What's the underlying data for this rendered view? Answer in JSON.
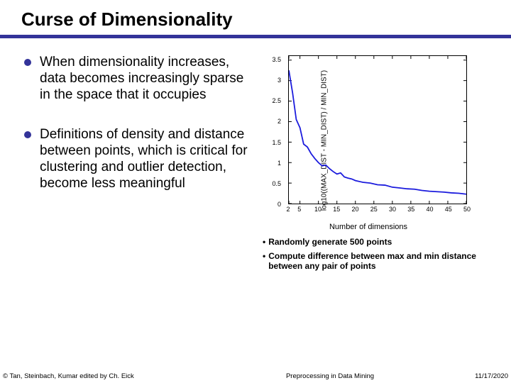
{
  "title": "Curse of Dimensionality",
  "bullets": [
    "When dimensionality increases, data becomes increasingly sparse in the space that it occupies",
    "Definitions of density and distance between points, which is critical for clustering and outlier detection, become less meaningful"
  ],
  "chart": {
    "type": "line",
    "y_label": "log10((MAX_DIST - MIN_DIST) / MIN_DIST)",
    "x_label": "Number of dimensions",
    "xlim": [
      2,
      50
    ],
    "ylim": [
      0,
      3.6
    ],
    "x_ticks": [
      2,
      5,
      10,
      15,
      20,
      25,
      30,
      35,
      40,
      45,
      50
    ],
    "y_ticks": [
      0,
      0.5,
      1,
      1.5,
      2,
      2.5,
      3,
      3.5
    ],
    "y_tick_labels": [
      "0",
      "0.5",
      "1",
      "1.5",
      "2",
      "2.5",
      "3",
      "3.5"
    ],
    "line_color": "#1b1bdd",
    "line_width": 1.8,
    "border_color": "#000000",
    "background_color": "#ffffff",
    "data": [
      {
        "x": 2,
        "y": 3.25
      },
      {
        "x": 3,
        "y": 2.7
      },
      {
        "x": 4,
        "y": 2.05
      },
      {
        "x": 5,
        "y": 1.85
      },
      {
        "x": 6,
        "y": 1.45
      },
      {
        "x": 7,
        "y": 1.38
      },
      {
        "x": 8,
        "y": 1.22
      },
      {
        "x": 9,
        "y": 1.1
      },
      {
        "x": 10,
        "y": 1.0
      },
      {
        "x": 11,
        "y": 0.92
      },
      {
        "x": 12,
        "y": 0.94
      },
      {
        "x": 13,
        "y": 0.85
      },
      {
        "x": 14,
        "y": 0.78
      },
      {
        "x": 15,
        "y": 0.72
      },
      {
        "x": 16,
        "y": 0.75
      },
      {
        "x": 17,
        "y": 0.65
      },
      {
        "x": 18,
        "y": 0.62
      },
      {
        "x": 19,
        "y": 0.6
      },
      {
        "x": 20,
        "y": 0.56
      },
      {
        "x": 22,
        "y": 0.52
      },
      {
        "x": 24,
        "y": 0.5
      },
      {
        "x": 26,
        "y": 0.46
      },
      {
        "x": 28,
        "y": 0.45
      },
      {
        "x": 30,
        "y": 0.4
      },
      {
        "x": 32,
        "y": 0.38
      },
      {
        "x": 34,
        "y": 0.36
      },
      {
        "x": 36,
        "y": 0.35
      },
      {
        "x": 38,
        "y": 0.32
      },
      {
        "x": 40,
        "y": 0.3
      },
      {
        "x": 42,
        "y": 0.29
      },
      {
        "x": 44,
        "y": 0.28
      },
      {
        "x": 46,
        "y": 0.26
      },
      {
        "x": 48,
        "y": 0.25
      },
      {
        "x": 50,
        "y": 0.23
      }
    ]
  },
  "captions": [
    "Randomly generate 500 points",
    "Compute difference between max and min distance between any pair of points"
  ],
  "footer": {
    "left": "© Tan, Steinbach, Kumar edited by Ch. Eick",
    "center": "Preprocessing in Data Mining",
    "right": "11/17/2020"
  },
  "colors": {
    "bullet": "#333399",
    "divider": "#333399"
  }
}
